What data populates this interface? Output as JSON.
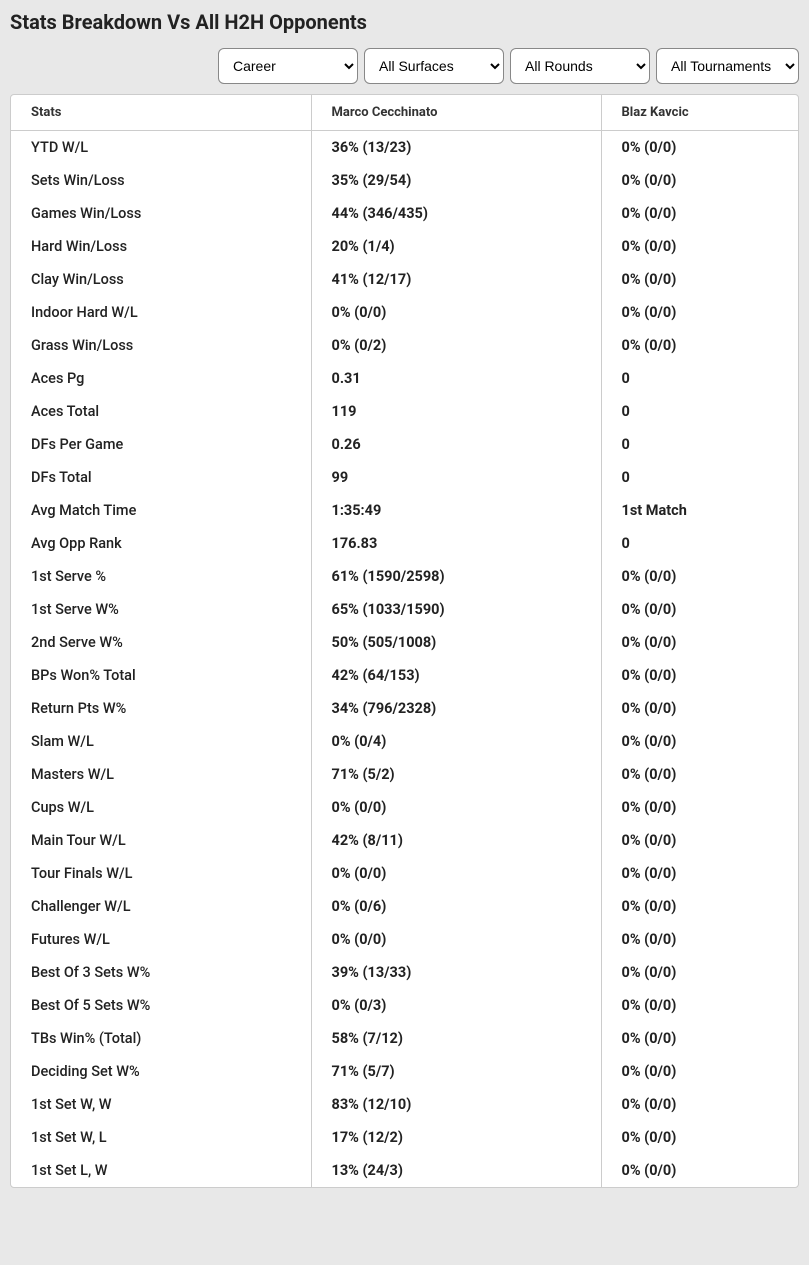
{
  "title": "Stats Breakdown Vs All H2H Opponents",
  "filters": {
    "period": {
      "selected": "Career",
      "options": [
        "Career"
      ]
    },
    "surface": {
      "selected": "All Surfaces",
      "options": [
        "All Surfaces"
      ]
    },
    "round": {
      "selected": "All Rounds",
      "options": [
        "All Rounds"
      ]
    },
    "tournament": {
      "selected": "All Tournaments",
      "options": [
        "All Tournaments"
      ]
    }
  },
  "columns": [
    "Stats",
    "Marco Cecchinato",
    "Blaz Kavcic"
  ],
  "rows": [
    {
      "label": "YTD W/L",
      "p1": "36% (13/23)",
      "p2": "0% (0/0)"
    },
    {
      "label": "Sets Win/Loss",
      "p1": "35% (29/54)",
      "p2": "0% (0/0)"
    },
    {
      "label": "Games Win/Loss",
      "p1": "44% (346/435)",
      "p2": "0% (0/0)"
    },
    {
      "label": "Hard Win/Loss",
      "p1": "20% (1/4)",
      "p2": "0% (0/0)"
    },
    {
      "label": "Clay Win/Loss",
      "p1": "41% (12/17)",
      "p2": "0% (0/0)"
    },
    {
      "label": "Indoor Hard W/L",
      "p1": "0% (0/0)",
      "p2": "0% (0/0)"
    },
    {
      "label": "Grass Win/Loss",
      "p1": "0% (0/2)",
      "p2": "0% (0/0)"
    },
    {
      "label": "Aces Pg",
      "p1": "0.31",
      "p2": "0"
    },
    {
      "label": "Aces Total",
      "p1": "119",
      "p2": "0"
    },
    {
      "label": "DFs Per Game",
      "p1": "0.26",
      "p2": "0"
    },
    {
      "label": "DFs Total",
      "p1": "99",
      "p2": "0"
    },
    {
      "label": "Avg Match Time",
      "p1": "1:35:49",
      "p2": "1st Match"
    },
    {
      "label": "Avg Opp Rank",
      "p1": "176.83",
      "p2": "0"
    },
    {
      "label": "1st Serve %",
      "p1": "61% (1590/2598)",
      "p2": "0% (0/0)"
    },
    {
      "label": "1st Serve W%",
      "p1": "65% (1033/1590)",
      "p2": "0% (0/0)"
    },
    {
      "label": "2nd Serve W%",
      "p1": "50% (505/1008)",
      "p2": "0% (0/0)"
    },
    {
      "label": "BPs Won% Total",
      "p1": "42% (64/153)",
      "p2": "0% (0/0)"
    },
    {
      "label": "Return Pts W%",
      "p1": "34% (796/2328)",
      "p2": "0% (0/0)"
    },
    {
      "label": "Slam W/L",
      "p1": "0% (0/4)",
      "p2": "0% (0/0)"
    },
    {
      "label": "Masters W/L",
      "p1": "71% (5/2)",
      "p2": "0% (0/0)"
    },
    {
      "label": "Cups W/L",
      "p1": "0% (0/0)",
      "p2": "0% (0/0)"
    },
    {
      "label": "Main Tour W/L",
      "p1": "42% (8/11)",
      "p2": "0% (0/0)"
    },
    {
      "label": "Tour Finals W/L",
      "p1": "0% (0/0)",
      "p2": "0% (0/0)"
    },
    {
      "label": "Challenger W/L",
      "p1": "0% (0/6)",
      "p2": "0% (0/0)"
    },
    {
      "label": "Futures W/L",
      "p1": "0% (0/0)",
      "p2": "0% (0/0)"
    },
    {
      "label": "Best Of 3 Sets W%",
      "p1": "39% (13/33)",
      "p2": "0% (0/0)"
    },
    {
      "label": "Best Of 5 Sets W%",
      "p1": "0% (0/3)",
      "p2": "0% (0/0)"
    },
    {
      "label": "TBs Win% (Total)",
      "p1": "58% (7/12)",
      "p2": "0% (0/0)"
    },
    {
      "label": "Deciding Set W%",
      "p1": "71% (5/7)",
      "p2": "0% (0/0)"
    },
    {
      "label": "1st Set W, W",
      "p1": "83% (12/10)",
      "p2": "0% (0/0)"
    },
    {
      "label": "1st Set W, L",
      "p1": "17% (12/2)",
      "p2": "0% (0/0)"
    },
    {
      "label": "1st Set L, W",
      "p1": "13% (24/3)",
      "p2": "0% (0/0)"
    }
  ]
}
